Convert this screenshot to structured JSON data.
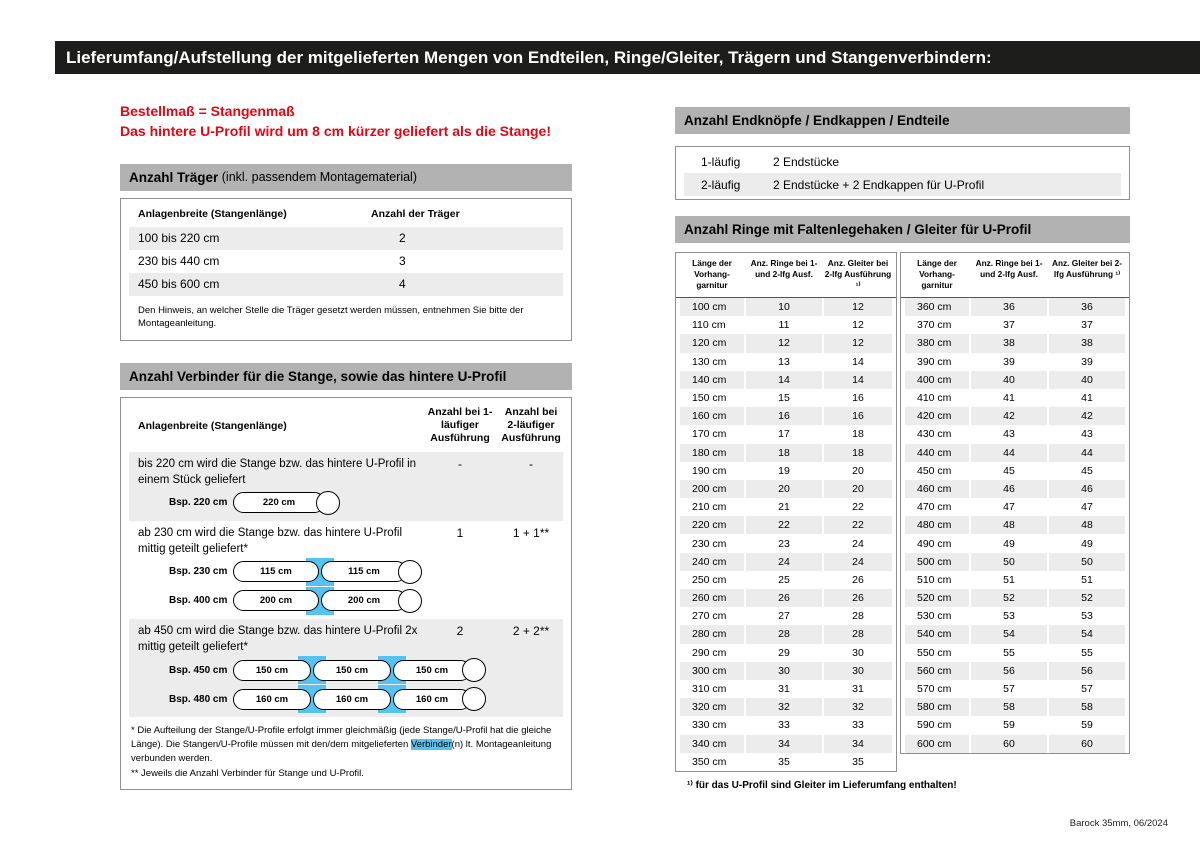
{
  "page": {
    "title_bar": "Lieferumfang/Aufstellung der mitgelieferten Mengen von Endteilen, Ringe/Gleiter, Trägern und Stangenverbindern:",
    "footer": "Barock 35mm, 06/2024"
  },
  "colors": {
    "accent_red": "#e30613",
    "highlight_blue": "#54c3f1",
    "bar_black": "#1d1d1b",
    "section_gray": "#b2b2b2",
    "stripe_gray": "#ececec"
  },
  "left": {
    "notice_line1": "Bestellmaß = Stangenmaß",
    "notice_line2": "Das hintere U-Profil wird um 8 cm kürzer geliefert als die Stange!",
    "traeger": {
      "title_bold": "Anzahl Träger",
      "title_rest": " (inkl. passendem Montagematerial)",
      "col1": "Anlagenbreite (Stangenlänge)",
      "col2": "Anzahl der Träger",
      "rows": [
        {
          "range": "100 bis 220 cm",
          "count": "2"
        },
        {
          "range": "230 bis 440 cm",
          "count": "3"
        },
        {
          "range": "450 bis 600 cm",
          "count": "4"
        }
      ],
      "note": "Den Hinweis, an welcher Stelle die Träger gesetzt werden müssen, entnehmen Sie bitte der Montageanleitung."
    },
    "verbinder": {
      "title": "Anzahl Verbinder für die Stange, sowie das hintere U-Profil",
      "col1": "Anlagenbreite (Stangenlänge)",
      "col2": "Anzahl bei 1-läufiger Ausführung",
      "col3": "Anzahl bei 2-läufiger Ausführung",
      "sections": [
        {
          "desc": "bis 220 cm wird die Stange bzw. das hintere U-Profil in einem Stück geliefert",
          "v1": "-",
          "v2": "-",
          "examples": [
            {
              "label": "Bsp. 220 cm",
              "segments": [
                "220 cm"
              ]
            }
          ]
        },
        {
          "desc": "ab 230 cm wird die Stange bzw. das hintere U-Profil mittig geteilt geliefert*",
          "v1": "1",
          "v2": "1 + 1**",
          "examples": [
            {
              "label": "Bsp. 230 cm",
              "segments": [
                "115 cm",
                "115 cm"
              ]
            },
            {
              "label": "Bsp. 400 cm",
              "segments": [
                "200 cm",
                "200 cm"
              ]
            }
          ]
        },
        {
          "desc": "ab 450 cm wird die Stange bzw. das hintere U-Profil 2x mittig geteilt geliefert*",
          "v1": "2",
          "v2": "2 + 2**",
          "examples": [
            {
              "label": "Bsp. 450 cm",
              "segments": [
                "150 cm",
                "150 cm",
                "150 cm"
              ]
            },
            {
              "label": "Bsp. 480 cm",
              "segments": [
                "160 cm",
                "160 cm",
                "160 cm"
              ]
            }
          ]
        }
      ],
      "footnote1_pre": "* Die Aufteilung der Stange/U-Profile erfolgt immer gleichmäßig (jede Stange/U-Profil hat die gleiche Länge). Die Stangen/U-Profile müssen mit den/dem mitgelieferten ",
      "footnote1_highlight": "Verbinder",
      "footnote1_post": "(n) lt. Montageanleitung verbunden werden.",
      "footnote2": "** Jeweils die Anzahl Verbinder für Stange und U-Profil."
    }
  },
  "right": {
    "endteile": {
      "title": "Anzahl Endknöpfe / Endkappen / Endteile",
      "rows": [
        {
          "type": "1-läufig",
          "content": "2 Endstücke"
        },
        {
          "type": "2-läufig",
          "content": "2 Endstücke + 2 Endkappen für U-Profil"
        }
      ]
    },
    "ringe": {
      "title": "Anzahl Ringe mit Faltenlegehaken / Gleiter für U-Profil",
      "col1": "Länge der Vorhang-garnitur",
      "col2": "Anz. Ringe bei 1- und 2-lfg Ausf.",
      "col3": "Anz. Gleiter bei 2-lfg Ausführung ¹⁾",
      "table1": [
        [
          "100 cm",
          "10",
          "12"
        ],
        [
          "110 cm",
          "11",
          "12"
        ],
        [
          "120 cm",
          "12",
          "12"
        ],
        [
          "130 cm",
          "13",
          "14"
        ],
        [
          "140 cm",
          "14",
          "14"
        ],
        [
          "150 cm",
          "15",
          "16"
        ],
        [
          "160 cm",
          "16",
          "16"
        ],
        [
          "170 cm",
          "17",
          "18"
        ],
        [
          "180 cm",
          "18",
          "18"
        ],
        [
          "190 cm",
          "19",
          "20"
        ],
        [
          "200 cm",
          "20",
          "20"
        ],
        [
          "210 cm",
          "21",
          "22"
        ],
        [
          "220 cm",
          "22",
          "22"
        ],
        [
          "230 cm",
          "23",
          "24"
        ],
        [
          "240 cm",
          "24",
          "24"
        ],
        [
          "250 cm",
          "25",
          "26"
        ],
        [
          "260 cm",
          "26",
          "26"
        ],
        [
          "270 cm",
          "27",
          "28"
        ],
        [
          "280 cm",
          "28",
          "28"
        ],
        [
          "290 cm",
          "29",
          "30"
        ],
        [
          "300 cm",
          "30",
          "30"
        ],
        [
          "310 cm",
          "31",
          "31"
        ],
        [
          "320 cm",
          "32",
          "32"
        ],
        [
          "330 cm",
          "33",
          "33"
        ],
        [
          "340 cm",
          "34",
          "34"
        ],
        [
          "350 cm",
          "35",
          "35"
        ]
      ],
      "table2": [
        [
          "360 cm",
          "36",
          "36"
        ],
        [
          "370 cm",
          "37",
          "37"
        ],
        [
          "380 cm",
          "38",
          "38"
        ],
        [
          "390 cm",
          "39",
          "39"
        ],
        [
          "400 cm",
          "40",
          "40"
        ],
        [
          "410 cm",
          "41",
          "41"
        ],
        [
          "420 cm",
          "42",
          "42"
        ],
        [
          "430 cm",
          "43",
          "43"
        ],
        [
          "440 cm",
          "44",
          "44"
        ],
        [
          "450 cm",
          "45",
          "45"
        ],
        [
          "460 cm",
          "46",
          "46"
        ],
        [
          "470 cm",
          "47",
          "47"
        ],
        [
          "480 cm",
          "48",
          "48"
        ],
        [
          "490 cm",
          "49",
          "49"
        ],
        [
          "500 cm",
          "50",
          "50"
        ],
        [
          "510 cm",
          "51",
          "51"
        ],
        [
          "520 cm",
          "52",
          "52"
        ],
        [
          "530 cm",
          "53",
          "53"
        ],
        [
          "540 cm",
          "54",
          "54"
        ],
        [
          "550 cm",
          "55",
          "55"
        ],
        [
          "560 cm",
          "56",
          "56"
        ],
        [
          "570 cm",
          "57",
          "57"
        ],
        [
          "580 cm",
          "58",
          "58"
        ],
        [
          "590 cm",
          "59",
          "59"
        ],
        [
          "600 cm",
          "60",
          "60"
        ]
      ],
      "footnote": "¹⁾ für das U-Profil sind Gleiter im Lieferumfang enthalten!"
    }
  }
}
